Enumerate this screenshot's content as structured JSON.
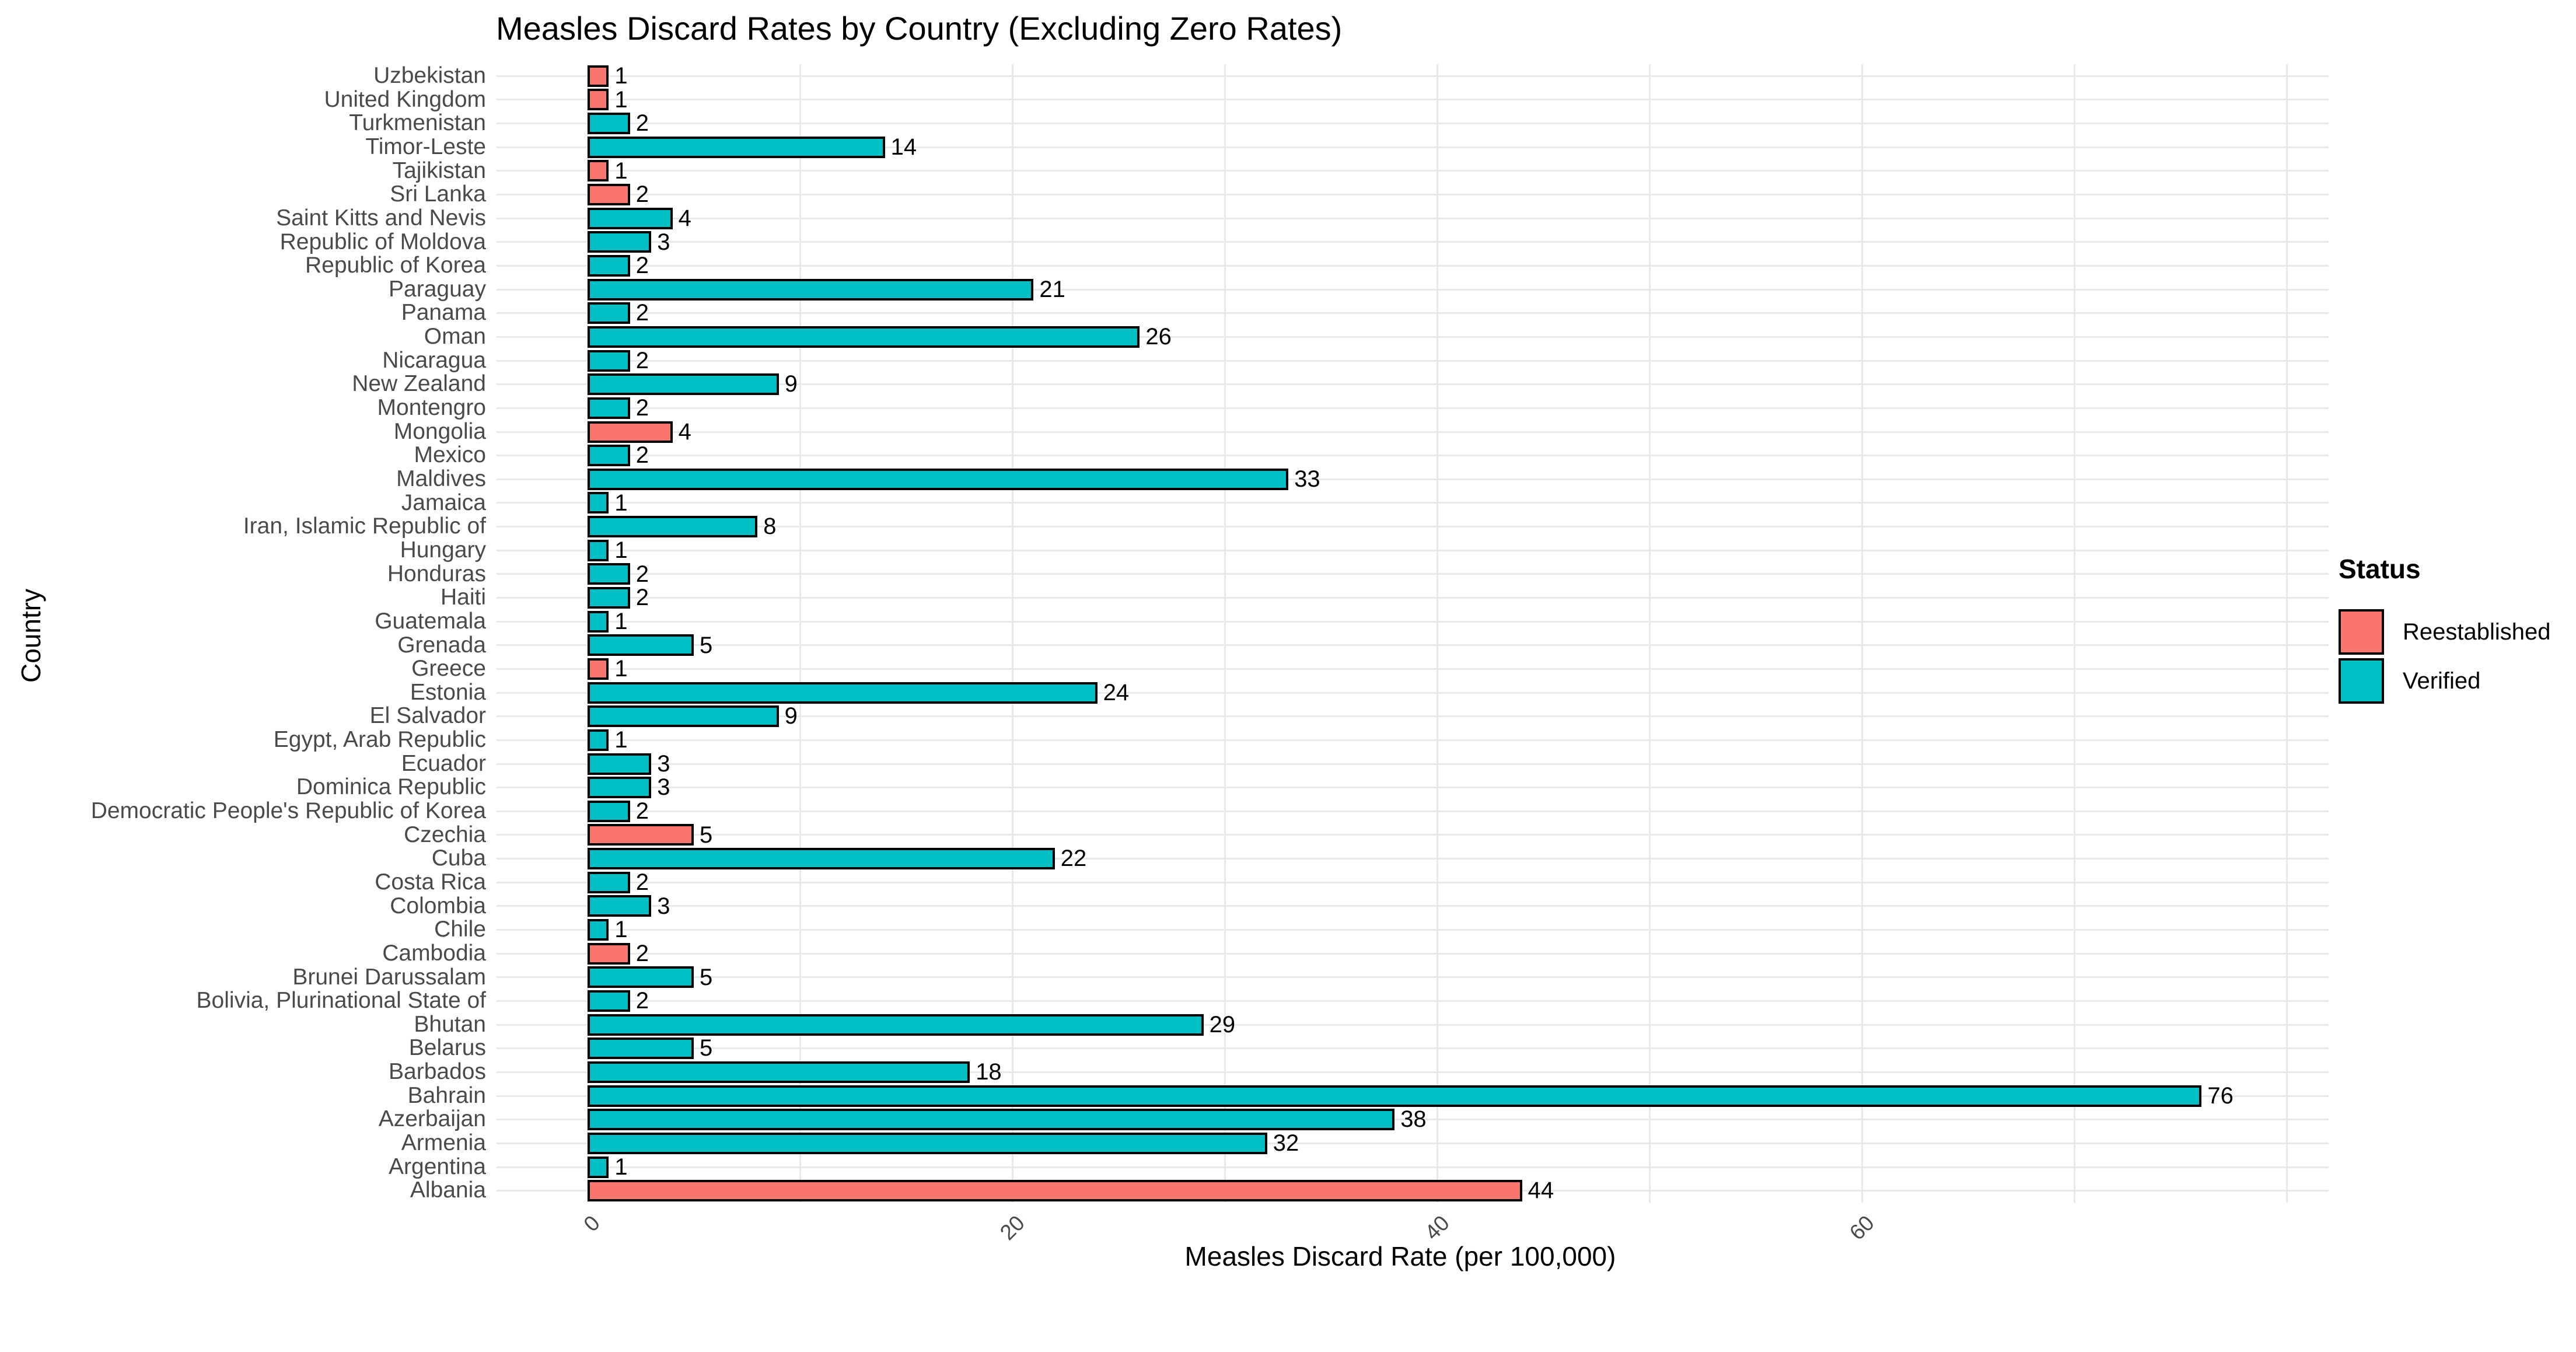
{
  "chart_data": {
    "type": "bar",
    "orientation": "horizontal",
    "title": "Measles Discard Rates by Country (Excluding Zero Rates)",
    "xlabel": "Measles Discard Rate (per 100,000)",
    "ylabel": "Country",
    "xlim": [
      0,
      80
    ],
    "x_ticks": [
      0,
      20,
      40,
      60
    ],
    "x_tick_labels": [
      "0",
      "20",
      "40",
      "60"
    ],
    "gridline_interval": 10,
    "grid": true,
    "bar_border_color": "#000000",
    "legend": {
      "title": "Status",
      "position": "right",
      "items": [
        {
          "label": "Reestablished",
          "color": "#F8766D"
        },
        {
          "label": "Verified",
          "color": "#00BFC4"
        }
      ]
    },
    "bars": [
      {
        "country": "Uzbekistan",
        "value": 1,
        "status": "Reestablished"
      },
      {
        "country": "United Kingdom",
        "value": 1,
        "status": "Reestablished"
      },
      {
        "country": "Turkmenistan",
        "value": 2,
        "status": "Verified"
      },
      {
        "country": "Timor-Leste",
        "value": 14,
        "status": "Verified"
      },
      {
        "country": "Tajikistan",
        "value": 1,
        "status": "Reestablished"
      },
      {
        "country": "Sri Lanka",
        "value": 2,
        "status": "Reestablished"
      },
      {
        "country": "Saint Kitts and Nevis",
        "value": 4,
        "status": "Verified"
      },
      {
        "country": "Republic of Moldova",
        "value": 3,
        "status": "Verified"
      },
      {
        "country": "Republic of Korea",
        "value": 2,
        "status": "Verified"
      },
      {
        "country": "Paraguay",
        "value": 21,
        "status": "Verified"
      },
      {
        "country": "Panama",
        "value": 2,
        "status": "Verified"
      },
      {
        "country": "Oman",
        "value": 26,
        "status": "Verified"
      },
      {
        "country": "Nicaragua",
        "value": 2,
        "status": "Verified"
      },
      {
        "country": "New Zealand",
        "value": 9,
        "status": "Verified"
      },
      {
        "country": "Montengro",
        "value": 2,
        "status": "Verified"
      },
      {
        "country": "Mongolia",
        "value": 4,
        "status": "Reestablished"
      },
      {
        "country": "Mexico",
        "value": 2,
        "status": "Verified"
      },
      {
        "country": "Maldives",
        "value": 33,
        "status": "Verified"
      },
      {
        "country": "Jamaica",
        "value": 1,
        "status": "Verified"
      },
      {
        "country": "Iran, Islamic Republic of",
        "value": 8,
        "status": "Verified"
      },
      {
        "country": "Hungary",
        "value": 1,
        "status": "Verified"
      },
      {
        "country": "Honduras",
        "value": 2,
        "status": "Verified"
      },
      {
        "country": "Haiti",
        "value": 2,
        "status": "Verified"
      },
      {
        "country": "Guatemala",
        "value": 1,
        "status": "Verified"
      },
      {
        "country": "Grenada",
        "value": 5,
        "status": "Verified"
      },
      {
        "country": "Greece",
        "value": 1,
        "status": "Reestablished"
      },
      {
        "country": "Estonia",
        "value": 24,
        "status": "Verified"
      },
      {
        "country": "El Salvador",
        "value": 9,
        "status": "Verified"
      },
      {
        "country": "Egypt, Arab Republic",
        "value": 1,
        "status": "Verified"
      },
      {
        "country": "Ecuador",
        "value": 3,
        "status": "Verified"
      },
      {
        "country": "Dominica Republic",
        "value": 3,
        "status": "Verified"
      },
      {
        "country": "Democratic People's Republic of Korea",
        "value": 2,
        "status": "Verified"
      },
      {
        "country": "Czechia",
        "value": 5,
        "status": "Reestablished"
      },
      {
        "country": "Cuba",
        "value": 22,
        "status": "Verified"
      },
      {
        "country": "Costa Rica",
        "value": 2,
        "status": "Verified"
      },
      {
        "country": "Colombia",
        "value": 3,
        "status": "Verified"
      },
      {
        "country": "Chile",
        "value": 1,
        "status": "Verified"
      },
      {
        "country": "Cambodia",
        "value": 2,
        "status": "Reestablished"
      },
      {
        "country": "Brunei Darussalam",
        "value": 5,
        "status": "Verified"
      },
      {
        "country": "Bolivia, Plurinational State of",
        "value": 2,
        "status": "Verified"
      },
      {
        "country": "Bhutan",
        "value": 29,
        "status": "Verified"
      },
      {
        "country": "Belarus",
        "value": 5,
        "status": "Verified"
      },
      {
        "country": "Barbados",
        "value": 18,
        "status": "Verified"
      },
      {
        "country": "Bahrain",
        "value": 76,
        "status": "Verified"
      },
      {
        "country": "Azerbaijan",
        "value": 38,
        "status": "Verified"
      },
      {
        "country": "Armenia",
        "value": 32,
        "status": "Verified"
      },
      {
        "country": "Argentina",
        "value": 1,
        "status": "Verified"
      },
      {
        "country": "Albania",
        "value": 44,
        "status": "Reestablished"
      }
    ]
  }
}
